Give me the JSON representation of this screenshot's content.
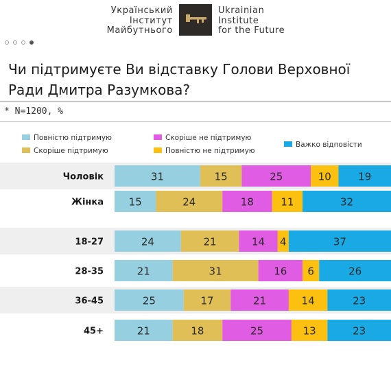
{
  "header": {
    "logo_left_lines": [
      "Український",
      "Інститут",
      "Майбутнього"
    ],
    "logo_right_lines": [
      "Ukrainian",
      "Institute",
      "for the Future"
    ],
    "logo_icon": "key-icon"
  },
  "carousel": {
    "count": 4,
    "active_index": 3
  },
  "note": "* N=1200, %",
  "colors": [
    "#95cfe0",
    "#e0c056",
    "#e05ce2",
    "#fbc010",
    "#19a9e5"
  ],
  "legend": [
    {
      "label": "Повністю підтримую",
      "color": "#95cfe0"
    },
    {
      "label": "Скоріше підтримую",
      "color": "#e0c056"
    },
    {
      "label": "Скоріше не підтримую",
      "color": "#e05ce2"
    },
    {
      "label": "Повністю не підтримую",
      "color": "#fbc010"
    },
    {
      "label": "Важко відповісти",
      "color": "#19a9e5"
    }
  ],
  "chart_data": {
    "type": "bar",
    "orientation": "horizontal",
    "stacked": true,
    "title": "Чи підтримуєте Ви відставку Голови Верховної Ради Дмитра Разумкова?",
    "categories": [
      "Чоловік",
      "Жінка",
      "18-27",
      "28-35",
      "36-45",
      "45+"
    ],
    "series": [
      {
        "name": "Повністю підтримую",
        "values": [
          31,
          15,
          24,
          21,
          25,
          21
        ]
      },
      {
        "name": "Скоріше підтримую",
        "values": [
          15,
          24,
          21,
          31,
          17,
          18
        ]
      },
      {
        "name": "Скоріше не підтримую",
        "values": [
          25,
          18,
          14,
          16,
          21,
          25
        ]
      },
      {
        "name": "Повністю не підтримую",
        "values": [
          10,
          11,
          4,
          6,
          14,
          13
        ]
      },
      {
        "name": "Важко відповісти",
        "values": [
          19,
          32,
          37,
          26,
          23,
          23
        ]
      }
    ],
    "xlim": [
      0,
      100
    ],
    "legend_position": "top",
    "grid": false
  }
}
